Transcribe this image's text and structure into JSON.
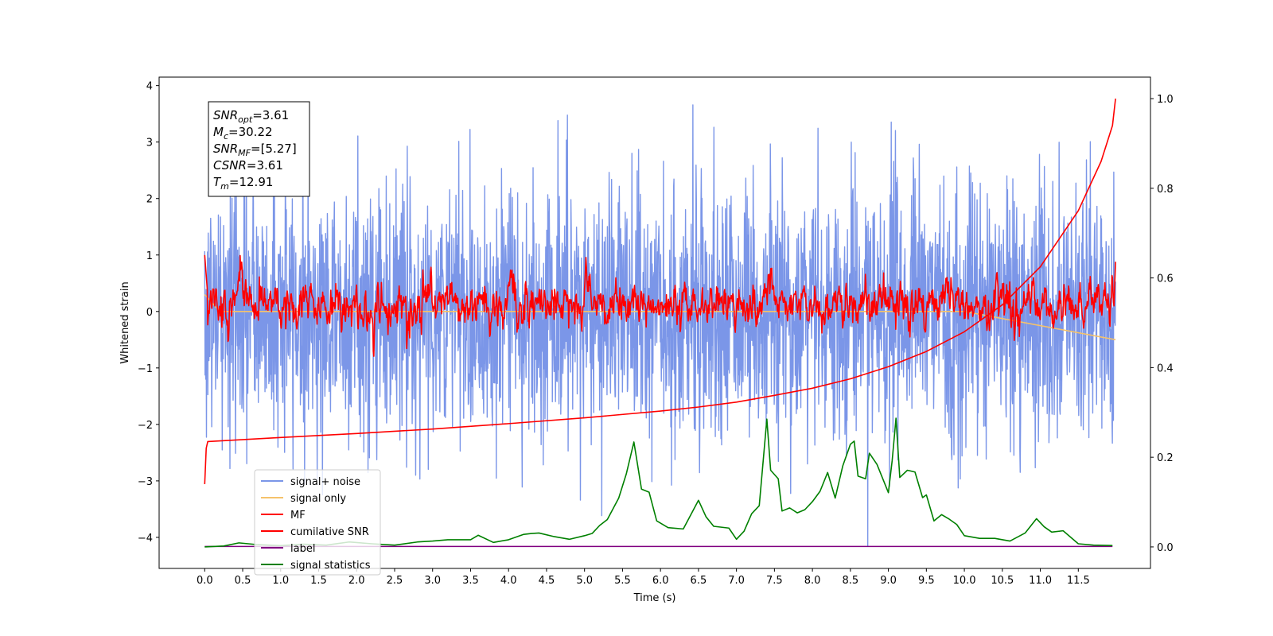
{
  "chart_data": {
    "type": "line",
    "xlabel": "Time (s)",
    "ylabel": "Whitened strain",
    "xlim": [
      -0.6,
      12.45
    ],
    "ylim": [
      -4.55,
      4.15
    ],
    "ylim_right": [
      -0.048,
      1.048
    ],
    "x_ticks": [
      0.0,
      0.5,
      1.0,
      1.5,
      2.0,
      2.5,
      3.0,
      3.5,
      4.0,
      4.5,
      5.0,
      5.5,
      6.0,
      6.5,
      7.0,
      7.5,
      8.0,
      8.5,
      9.0,
      9.5,
      10.0,
      10.5,
      11.0,
      11.5
    ],
    "x_tick_labels": [
      "0.0",
      "0.5",
      "1.0",
      "1.5",
      "2.0",
      "2.5",
      "3.0",
      "3.5",
      "4.0",
      "4.5",
      "5.0",
      "5.5",
      "6.0",
      "6.5",
      "7.0",
      "7.5",
      "8.0",
      "8.5",
      "9.0",
      "9.5",
      "10.0",
      "10.5",
      "11.0",
      "11.5"
    ],
    "y_ticks": [
      4,
      3,
      2,
      1,
      0,
      -1,
      -2,
      -3,
      -4
    ],
    "y_tick_labels": [
      "4",
      "3",
      "2",
      "1",
      "0",
      "−1",
      "−2",
      "−3",
      "−4"
    ],
    "y2_ticks": [
      1.0,
      0.8,
      0.6,
      0.4,
      0.2,
      0.0
    ],
    "y2_tick_labels": [
      "1.0",
      "0.8",
      "0.6",
      "0.4",
      "0.2",
      "0.0"
    ],
    "info_box": [
      {
        "base": "SNR",
        "sub": "opt",
        "rest": "=3.61"
      },
      {
        "base": "M",
        "sub": "c",
        "rest": "=30.22"
      },
      {
        "base": "SNR",
        "sub": "MF",
        "rest": "=[5.27]"
      },
      {
        "base": "CSNR",
        "sub": "",
        "rest": "=3.61"
      },
      {
        "base": "T",
        "sub": "m",
        "rest": "=12.91"
      }
    ],
    "legend_position": "lower-left",
    "legend": [
      {
        "name": "signal+ noise",
        "color": "#7b96e8"
      },
      {
        "name": "signal only",
        "color": "#f5c26b"
      },
      {
        "name": "MF",
        "color": "#ff0000"
      },
      {
        "name": "cumilative SNR",
        "color": "#ff0000"
      },
      {
        "name": "label",
        "color": "#800080"
      },
      {
        "name": "signal statistics",
        "color": "#008000"
      }
    ],
    "series": [
      {
        "name": "signal+ noise",
        "axis": "left",
        "color": "#7b96e8",
        "generated": {
          "t_start": 0.0,
          "t_end": 11.99,
          "n": 2600,
          "amplitude_sigma": 1.15,
          "peak_limit": 3.75,
          "dip_at": 8.73,
          "dip_value": -4.15
        }
      },
      {
        "name": "signal only",
        "axis": "left",
        "color": "#f5c26b",
        "x": [
          0.0,
          0.2,
          2.0,
          4.0,
          6.0,
          8.0,
          10.0,
          11.99
        ],
        "y": [
          0.3,
          0.0,
          0.0,
          0.0,
          0.0,
          0.0,
          0.0,
          -0.5
        ]
      },
      {
        "name": "MF",
        "axis": "left",
        "color": "#ff0000",
        "generated": {
          "t_start": 0.0,
          "t_end": 11.99,
          "n": 1800,
          "baseline": 0.1,
          "amplitude": 0.16,
          "start_value": 1.0,
          "end_value": 0.88,
          "bumps": [
            [
              0.45,
              0.4
            ],
            [
              4.05,
              0.5
            ],
            [
              5.05,
              0.35
            ],
            [
              7.45,
              0.3
            ],
            [
              9.75,
              0.3
            ],
            [
              10.45,
              0.35
            ]
          ]
        }
      },
      {
        "name": "cumilative SNR",
        "axis": "right",
        "color": "#ff0000",
        "x": [
          0.0,
          0.02,
          0.04,
          1.0,
          2.0,
          3.0,
          4.0,
          5.0,
          6.0,
          6.5,
          7.0,
          7.5,
          8.0,
          8.5,
          9.0,
          9.5,
          10.0,
          10.5,
          11.0,
          11.5,
          11.8,
          11.95,
          11.99
        ],
        "y": [
          0.14,
          0.22,
          0.235,
          0.244,
          0.253,
          0.263,
          0.275,
          0.288,
          0.303,
          0.312,
          0.323,
          0.338,
          0.354,
          0.375,
          0.402,
          0.436,
          0.48,
          0.54,
          0.625,
          0.75,
          0.86,
          0.94,
          1.0
        ]
      },
      {
        "name": "label",
        "axis": "right",
        "color": "#800080",
        "x": [
          0.0,
          11.95
        ],
        "y": [
          0.001,
          0.001
        ]
      },
      {
        "name": "signal statistics",
        "axis": "right",
        "color": "#008000",
        "x": [
          0.0,
          0.25,
          0.45,
          0.7,
          1.0,
          1.3,
          1.6,
          1.9,
          2.2,
          2.5,
          2.8,
          3.0,
          3.2,
          3.5,
          3.6,
          3.8,
          4.0,
          4.2,
          4.3,
          4.4,
          4.6,
          4.8,
          5.0,
          5.1,
          5.2,
          5.3,
          5.45,
          5.55,
          5.65,
          5.75,
          5.85,
          5.95,
          6.1,
          6.3,
          6.5,
          6.6,
          6.7,
          6.9,
          7.0,
          7.1,
          7.2,
          7.3,
          7.4,
          7.45,
          7.55,
          7.6,
          7.7,
          7.8,
          7.9,
          8.0,
          8.1,
          8.2,
          8.3,
          8.4,
          8.5,
          8.55,
          8.6,
          8.7,
          8.75,
          8.85,
          9.0,
          9.05,
          9.1,
          9.15,
          9.25,
          9.35,
          9.45,
          9.5,
          9.6,
          9.7,
          9.8,
          9.9,
          10.0,
          10.2,
          10.4,
          10.6,
          10.8,
          10.95,
          11.05,
          11.15,
          11.3,
          11.5,
          11.7,
          11.95
        ],
        "y": [
          0.0,
          0.002,
          0.009,
          0.005,
          0.003,
          0.006,
          0.004,
          0.011,
          0.007,
          0.004,
          0.011,
          0.013,
          0.016,
          0.016,
          0.026,
          0.01,
          0.016,
          0.028,
          0.03,
          0.031,
          0.023,
          0.017,
          0.025,
          0.03,
          0.048,
          0.061,
          0.109,
          0.163,
          0.234,
          0.129,
          0.122,
          0.058,
          0.043,
          0.04,
          0.104,
          0.067,
          0.046,
          0.042,
          0.017,
          0.035,
          0.074,
          0.092,
          0.285,
          0.171,
          0.152,
          0.08,
          0.087,
          0.076,
          0.083,
          0.101,
          0.124,
          0.166,
          0.109,
          0.181,
          0.229,
          0.236,
          0.158,
          0.152,
          0.209,
          0.184,
          0.121,
          0.193,
          0.287,
          0.155,
          0.171,
          0.167,
          0.11,
          0.116,
          0.058,
          0.072,
          0.062,
          0.05,
          0.025,
          0.019,
          0.019,
          0.013,
          0.031,
          0.063,
          0.045,
          0.033,
          0.036,
          0.007,
          0.004,
          0.003
        ]
      }
    ]
  }
}
